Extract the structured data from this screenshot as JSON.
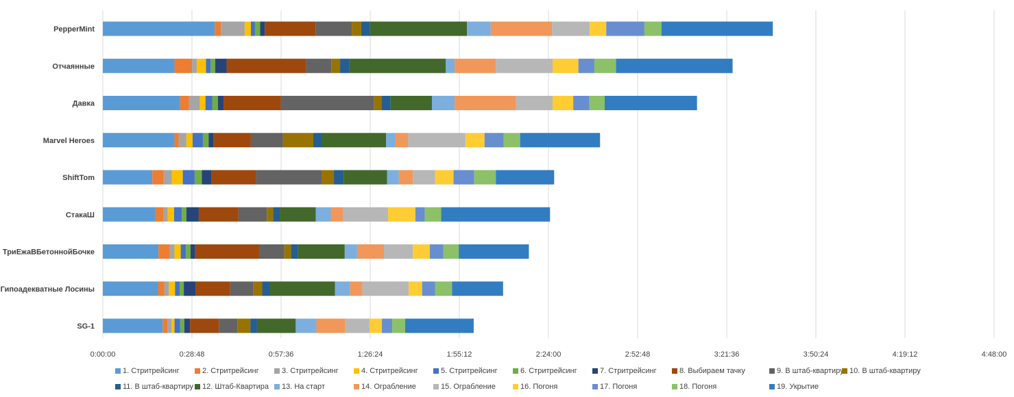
{
  "chart_data": {
    "type": "bar",
    "orientation": "horizontal",
    "stacked": true,
    "title": "",
    "xlabel": "",
    "ylabel": "",
    "x_ticks": [
      "0:00:00",
      "0:28:48",
      "0:57:36",
      "1:26:24",
      "1:55:12",
      "2:24:00",
      "2:52:48",
      "3:21:36",
      "3:50:24",
      "4:19:12",
      "4:48:00"
    ],
    "xlim_seconds": [
      0,
      17280
    ],
    "value_unit": "seconds",
    "grid": "vertical",
    "legend_position": "bottom",
    "categories": [
      "PepperMint",
      "Отчаянные",
      "Давка",
      "Marvel Heroes",
      "ShiftTom",
      "СтакаШ",
      "ТриЕжаВБетоннойБочке",
      "Гипоадекватные Лосины",
      "SG-1"
    ],
    "series": [
      {
        "name": "1. Стритрейсинг",
        "color": "#5B9BD5",
        "values": [
          2170,
          1390,
          1500,
          1390,
          960,
          1010,
          1080,
          1070,
          1160
        ]
      },
      {
        "name": "2. Стритрейсинг",
        "color": "#ED7D31",
        "values": [
          120,
          340,
          170,
          80,
          220,
          160,
          220,
          120,
          90
        ]
      },
      {
        "name": "3. Стритрейсинг",
        "color": "#A5A5A5",
        "values": [
          460,
          90,
          210,
          150,
          160,
          90,
          90,
          90,
          80
        ]
      },
      {
        "name": "4. Стритрейсинг",
        "color": "#FFC000",
        "values": [
          120,
          180,
          110,
          120,
          210,
          120,
          120,
          120,
          60
        ]
      },
      {
        "name": "5. Стритрейсинг",
        "color": "#4472C4",
        "values": [
          80,
          90,
          130,
          200,
          230,
          150,
          100,
          90,
          110
        ]
      },
      {
        "name": "6. Стритрейсинг",
        "color": "#70AD47",
        "values": [
          100,
          90,
          110,
          110,
          140,
          90,
          90,
          80,
          80
        ]
      },
      {
        "name": "7. Стритрейсинг",
        "color": "#264478",
        "values": [
          90,
          220,
          110,
          100,
          190,
          240,
          90,
          230,
          110
        ]
      },
      {
        "name": "8. Выбираем тачку",
        "color": "#9E480E",
        "values": [
          990,
          1540,
          1110,
          720,
          860,
          770,
          1240,
          670,
          560
        ]
      },
      {
        "name": "9. В штаб-квартиру",
        "color": "#636363",
        "values": [
          700,
          490,
          1810,
          620,
          1270,
          550,
          490,
          450,
          360
        ]
      },
      {
        "name": "10. В штаб-квартиру",
        "color": "#997300",
        "values": [
          180,
          170,
          150,
          590,
          240,
          120,
          130,
          170,
          250
        ]
      },
      {
        "name": "11. В штаб-квартиру",
        "color": "#255E91",
        "values": [
          170,
          180,
          170,
          160,
          190,
          130,
          130,
          140,
          130
        ]
      },
      {
        "name": "12. Штаб-Квартира",
        "color": "#43682B",
        "values": [
          1880,
          1870,
          800,
          1250,
          840,
          700,
          910,
          1270,
          750
        ]
      },
      {
        "name": "13. На старт",
        "color": "#7CAFDD",
        "values": [
          460,
          170,
          440,
          180,
          230,
          290,
          240,
          290,
          400
        ]
      },
      {
        "name": "14. Ограбление",
        "color": "#F1975A",
        "values": [
          1190,
          800,
          1190,
          250,
          270,
          240,
          520,
          240,
          560
        ]
      },
      {
        "name": "15. Ограбление",
        "color": "#B7B7B7",
        "values": [
          730,
          1100,
          710,
          1110,
          430,
          870,
          560,
          900,
          470
        ]
      },
      {
        "name": "16. Погоня",
        "color": "#FFCD33",
        "values": [
          320,
          500,
          400,
          370,
          360,
          530,
          330,
          260,
          240
        ]
      },
      {
        "name": "17. Погоня",
        "color": "#698ED0",
        "values": [
          740,
          310,
          310,
          370,
          400,
          180,
          260,
          250,
          200
        ]
      },
      {
        "name": "18. Погоня",
        "color": "#8CC168",
        "values": [
          330,
          420,
          300,
          320,
          420,
          320,
          300,
          330,
          250
        ]
      },
      {
        "name": "19. Укрытие",
        "color": "#327DC2",
        "values": [
          2160,
          2260,
          1790,
          1550,
          1130,
          2110,
          1360,
          990,
          1330
        ]
      }
    ]
  }
}
